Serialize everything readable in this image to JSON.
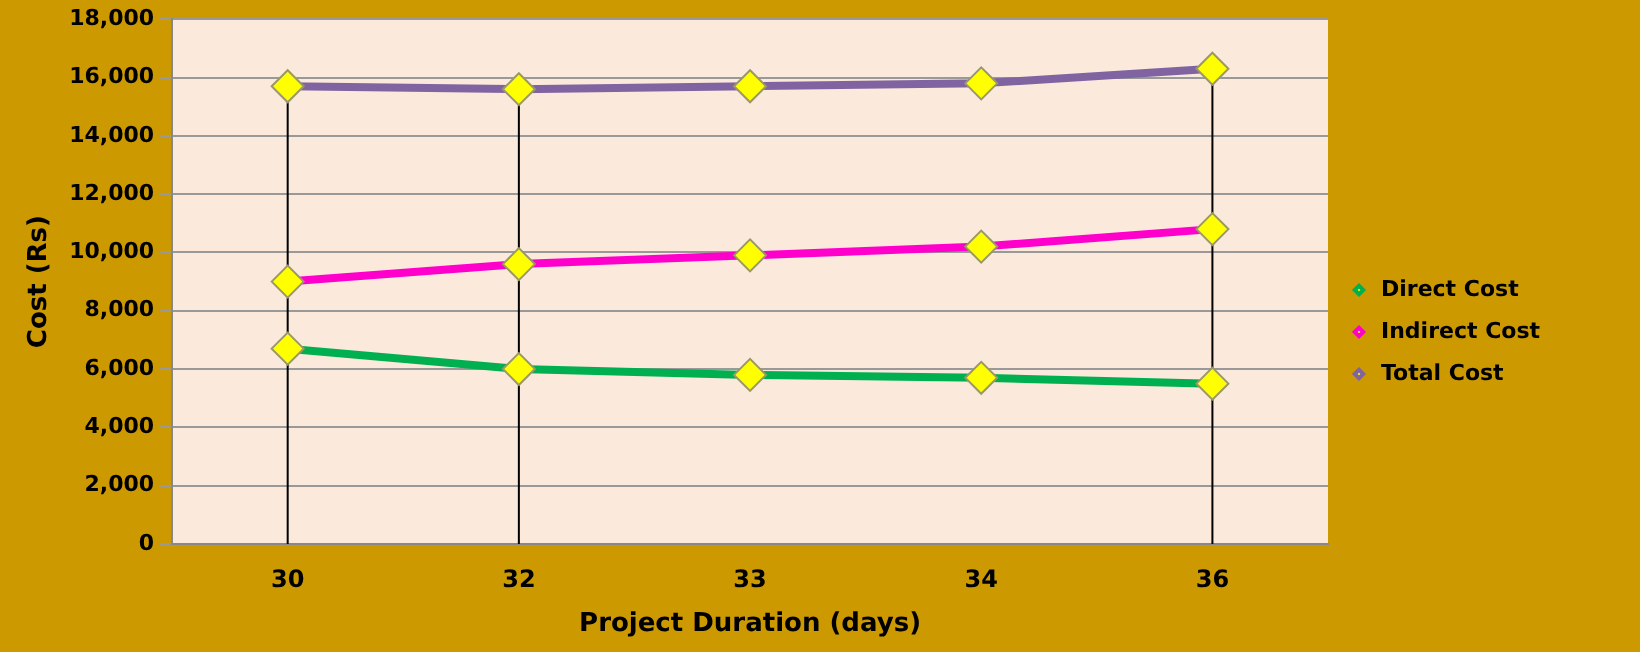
{
  "chart_data": {
    "type": "line",
    "xlabel": "Project Duration (days)",
    "ylabel": "Cost (Rs)",
    "categories": [
      "30",
      "32",
      "33",
      "34",
      "36"
    ],
    "series": [
      {
        "name": "Direct Cost",
        "color": "#00b050",
        "values": [
          6700,
          6000,
          5800,
          5700,
          5500
        ]
      },
      {
        "name": "Indirect Cost",
        "color": "#ff00cc",
        "values": [
          9000,
          9600,
          9900,
          10200,
          10800
        ]
      },
      {
        "name": "Total Cost",
        "color": "#8064a2",
        "values": [
          15700,
          15600,
          15700,
          15800,
          16300
        ]
      }
    ],
    "ylim": [
      0,
      18000
    ],
    "yticks": [
      {
        "value": 0,
        "label": "0"
      },
      {
        "value": 2000,
        "label": "2,000"
      },
      {
        "value": 4000,
        "label": "4,000"
      },
      {
        "value": 6000,
        "label": "6,000"
      },
      {
        "value": 8000,
        "label": "8,000"
      },
      {
        "value": 10000,
        "label": "10,000"
      },
      {
        "value": 12000,
        "label": "12,000"
      },
      {
        "value": 14000,
        "label": "14,000"
      },
      {
        "value": 16000,
        "label": "16,000"
      },
      {
        "value": 18000,
        "label": "18,000"
      }
    ],
    "ref_lines": [
      {
        "axis": "x",
        "value": "30",
        "color": "#000000"
      },
      {
        "axis": "x",
        "value": "32",
        "color": "#000000"
      },
      {
        "axis": "x",
        "value": "36",
        "color": "#000000"
      }
    ],
    "grid": "y",
    "legend": "right",
    "marker": "diamond",
    "line_style": "solid"
  }
}
